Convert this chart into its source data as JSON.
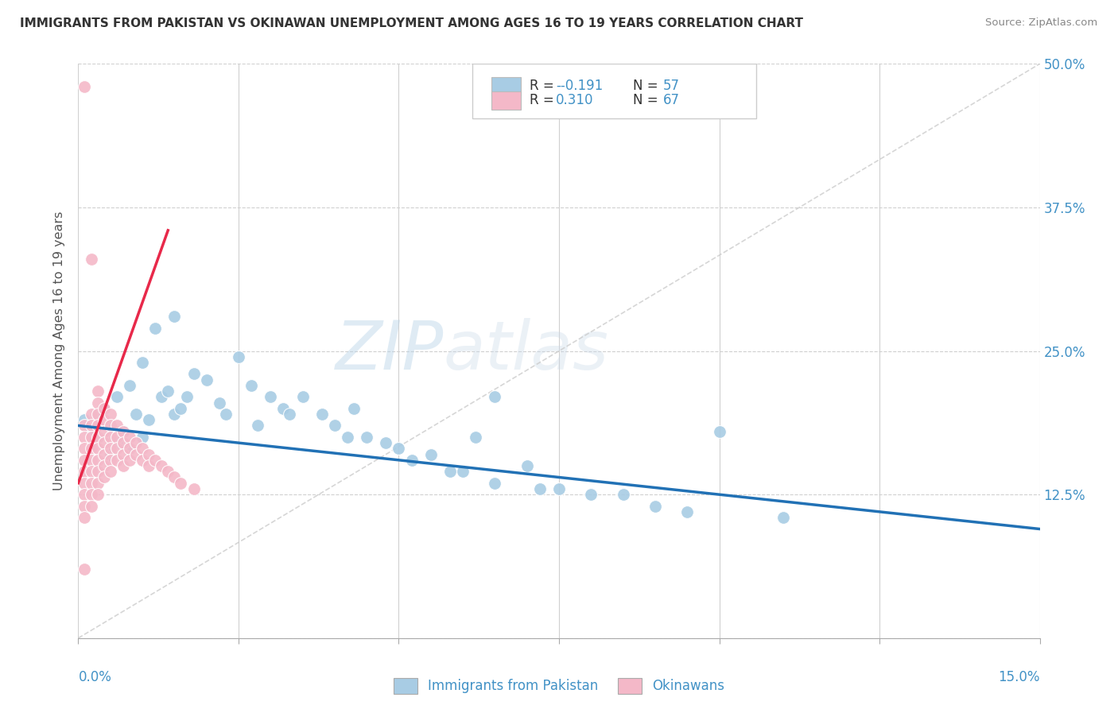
{
  "title": "IMMIGRANTS FROM PAKISTAN VS OKINAWAN UNEMPLOYMENT AMONG AGES 16 TO 19 YEARS CORRELATION CHART",
  "source": "Source: ZipAtlas.com",
  "ylabel": "Unemployment Among Ages 16 to 19 years",
  "legend_r1": "-0.191",
  "legend_n1": "57",
  "legend_r2": "0.310",
  "legend_n2": "67",
  "legend_label1": "Immigrants from Pakistan",
  "legend_label2": "Okinawans",
  "blue_color": "#a8cce4",
  "pink_color": "#f4b8c8",
  "blue_line_color": "#2171b5",
  "pink_line_color": "#e8294a",
  "text_color_blue": "#4292c6",
  "text_color_dark": "#333333",
  "background_color": "#ffffff",
  "grid_color": "#d0d0d0",
  "xmin": 0.0,
  "xmax": 0.15,
  "ymin": 0.0,
  "ymax": 0.5,
  "blue_regression_x0": 0.0,
  "blue_regression_y0": 0.185,
  "blue_regression_x1": 0.15,
  "blue_regression_y1": 0.095,
  "pink_regression_x0": 0.0,
  "pink_regression_y0": 0.135,
  "pink_regression_x1": 0.014,
  "pink_regression_y1": 0.355,
  "blue_x": [
    0.001,
    0.002,
    0.003,
    0.003,
    0.004,
    0.005,
    0.005,
    0.006,
    0.006,
    0.007,
    0.008,
    0.008,
    0.009,
    0.01,
    0.01,
    0.011,
    0.012,
    0.013,
    0.014,
    0.015,
    0.015,
    0.016,
    0.017,
    0.018,
    0.02,
    0.022,
    0.023,
    0.025,
    0.027,
    0.028,
    0.03,
    0.032,
    0.033,
    0.035,
    0.038,
    0.04,
    0.042,
    0.043,
    0.045,
    0.048,
    0.05,
    0.052,
    0.055,
    0.058,
    0.06,
    0.062,
    0.065,
    0.065,
    0.07,
    0.072,
    0.075,
    0.08,
    0.085,
    0.09,
    0.095,
    0.1,
    0.11
  ],
  "blue_y": [
    0.19,
    0.18,
    0.195,
    0.175,
    0.2,
    0.185,
    0.16,
    0.21,
    0.17,
    0.18,
    0.22,
    0.165,
    0.195,
    0.24,
    0.175,
    0.19,
    0.27,
    0.21,
    0.215,
    0.28,
    0.195,
    0.2,
    0.21,
    0.23,
    0.225,
    0.205,
    0.195,
    0.245,
    0.22,
    0.185,
    0.21,
    0.2,
    0.195,
    0.21,
    0.195,
    0.185,
    0.175,
    0.2,
    0.175,
    0.17,
    0.165,
    0.155,
    0.16,
    0.145,
    0.145,
    0.175,
    0.135,
    0.21,
    0.15,
    0.13,
    0.13,
    0.125,
    0.125,
    0.115,
    0.11,
    0.18,
    0.105
  ],
  "pink_x": [
    0.001,
    0.001,
    0.001,
    0.001,
    0.001,
    0.001,
    0.001,
    0.001,
    0.001,
    0.001,
    0.002,
    0.002,
    0.002,
    0.002,
    0.002,
    0.002,
    0.002,
    0.002,
    0.002,
    0.002,
    0.003,
    0.003,
    0.003,
    0.003,
    0.003,
    0.003,
    0.003,
    0.003,
    0.003,
    0.003,
    0.004,
    0.004,
    0.004,
    0.004,
    0.004,
    0.004,
    0.004,
    0.005,
    0.005,
    0.005,
    0.005,
    0.005,
    0.005,
    0.006,
    0.006,
    0.006,
    0.006,
    0.007,
    0.007,
    0.007,
    0.007,
    0.008,
    0.008,
    0.008,
    0.009,
    0.009,
    0.01,
    0.01,
    0.011,
    0.011,
    0.012,
    0.013,
    0.014,
    0.015,
    0.016,
    0.018,
    0.001
  ],
  "pink_y": [
    0.48,
    0.185,
    0.175,
    0.165,
    0.155,
    0.145,
    0.135,
    0.125,
    0.115,
    0.105,
    0.33,
    0.195,
    0.185,
    0.175,
    0.165,
    0.155,
    0.145,
    0.135,
    0.125,
    0.115,
    0.215,
    0.205,
    0.195,
    0.185,
    0.175,
    0.165,
    0.155,
    0.145,
    0.135,
    0.125,
    0.2,
    0.19,
    0.18,
    0.17,
    0.16,
    0.15,
    0.14,
    0.195,
    0.185,
    0.175,
    0.165,
    0.155,
    0.145,
    0.185,
    0.175,
    0.165,
    0.155,
    0.18,
    0.17,
    0.16,
    0.15,
    0.175,
    0.165,
    0.155,
    0.17,
    0.16,
    0.165,
    0.155,
    0.16,
    0.15,
    0.155,
    0.15,
    0.145,
    0.14,
    0.135,
    0.13,
    0.06
  ]
}
